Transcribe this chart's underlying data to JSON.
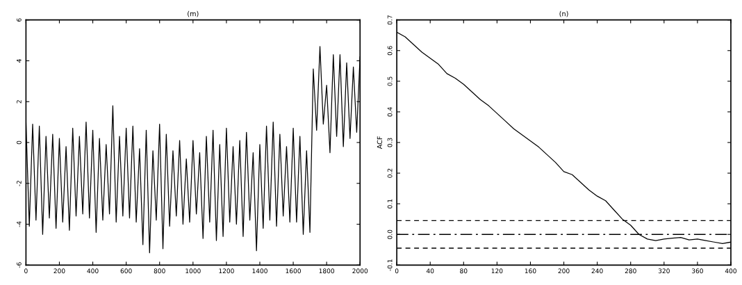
{
  "chart_data": [
    {
      "type": "line",
      "title": "(m)",
      "xlim": [
        0,
        2000
      ],
      "ylim": [
        -6,
        6
      ],
      "xticks": [
        0,
        200,
        400,
        600,
        800,
        1000,
        1200,
        1400,
        1600,
        1800,
        2000
      ],
      "yticks": [
        -6,
        -4,
        -2,
        0,
        2,
        4,
        6
      ],
      "x": [
        0,
        20,
        40,
        60,
        80,
        100,
        120,
        140,
        160,
        180,
        200,
        220,
        240,
        260,
        280,
        300,
        320,
        340,
        360,
        380,
        400,
        420,
        440,
        460,
        480,
        500,
        520,
        540,
        560,
        580,
        600,
        620,
        640,
        660,
        680,
        700,
        720,
        740,
        760,
        780,
        800,
        820,
        840,
        860,
        880,
        900,
        920,
        940,
        960,
        980,
        1000,
        1020,
        1040,
        1060,
        1080,
        1100,
        1120,
        1140,
        1160,
        1180,
        1200,
        1220,
        1240,
        1260,
        1280,
        1300,
        1320,
        1340,
        1360,
        1380,
        1400,
        1420,
        1440,
        1460,
        1480,
        1500,
        1520,
        1540,
        1560,
        1580,
        1600,
        1620,
        1640,
        1660,
        1680,
        1700,
        1720,
        1740,
        1760,
        1780,
        1800,
        1820,
        1840,
        1860,
        1880,
        1900,
        1920,
        1940,
        1960,
        1980,
        2000
      ],
      "series": [
        {
          "color": "#000000",
          "values": [
            1.0,
            -4.1,
            0.9,
            -3.8,
            0.8,
            -4.5,
            0.3,
            -3.7,
            0.4,
            -4.2,
            0.2,
            -3.9,
            -0.2,
            -4.3,
            0.7,
            -3.6,
            0.3,
            -3.5,
            1.0,
            -3.7,
            0.6,
            -4.4,
            0.2,
            -3.8,
            -0.1,
            -3.5,
            1.8,
            -3.9,
            0.3,
            -3.6,
            0.7,
            -3.7,
            0.8,
            -3.9,
            -0.3,
            -5.0,
            0.6,
            -5.4,
            -0.4,
            -3.8,
            0.9,
            -5.2,
            0.4,
            -4.1,
            -0.4,
            -3.6,
            0.1,
            -4.0,
            -0.8,
            -3.9,
            0.1,
            -3.5,
            -0.5,
            -4.7,
            0.3,
            -3.9,
            0.6,
            -4.8,
            -0.1,
            -4.6,
            0.7,
            -3.9,
            -0.2,
            -4.0,
            0.1,
            -4.6,
            0.5,
            -3.8,
            -0.5,
            -5.3,
            -0.1,
            -4.2,
            0.8,
            -3.8,
            1.0,
            -4.1,
            0.4,
            -3.6,
            -0.2,
            -3.9,
            0.7,
            -3.9,
            0.3,
            -4.5,
            -0.4,
            -4.4,
            3.6,
            0.6,
            4.7,
            0.9,
            2.8,
            -0.5,
            4.3,
            0.3,
            4.3,
            -0.2,
            3.9,
            0.2,
            3.7,
            0.5,
            4.2
          ]
        }
      ]
    },
    {
      "type": "line",
      "title": "(n)",
      "ylabel": "ACF",
      "xlim": [
        0,
        400
      ],
      "ylim": [
        -0.1,
        0.7
      ],
      "xticks": [
        0,
        40,
        80,
        120,
        160,
        200,
        240,
        280,
        320,
        360,
        400
      ],
      "yticks": [
        {
          "value": -0.1,
          "label": "-0.1"
        },
        {
          "value": 0.0,
          "label": "0.0"
        },
        {
          "value": 0.1,
          "label": "0.1"
        },
        {
          "value": 0.2,
          "label": "0.2"
        },
        {
          "value": 0.3,
          "label": "0.3"
        },
        {
          "value": 0.4,
          "label": "0.4"
        },
        {
          "value": 0.5,
          "label": "0.5"
        },
        {
          "value": 0.6,
          "label": "0.6"
        },
        {
          "value": 0.7,
          "label": "0.7"
        }
      ],
      "x": [
        0,
        10,
        20,
        30,
        40,
        50,
        60,
        70,
        80,
        90,
        100,
        110,
        120,
        130,
        140,
        150,
        160,
        170,
        180,
        190,
        200,
        210,
        220,
        230,
        240,
        250,
        260,
        270,
        280,
        290,
        300,
        310,
        320,
        330,
        340,
        350,
        360,
        370,
        380,
        390,
        400
      ],
      "series": [
        {
          "color": "#000000",
          "values": [
            0.66,
            0.645,
            0.62,
            0.595,
            0.575,
            0.555,
            0.525,
            0.51,
            0.49,
            0.465,
            0.44,
            0.42,
            0.395,
            0.37,
            0.345,
            0.325,
            0.305,
            0.285,
            0.26,
            0.235,
            0.205,
            0.195,
            0.17,
            0.145,
            0.125,
            0.11,
            0.08,
            0.05,
            0.03,
            0.0,
            -0.015,
            -0.02,
            -0.015,
            -0.012,
            -0.01,
            -0.018,
            -0.015,
            -0.02,
            -0.025,
            -0.03,
            -0.025
          ]
        }
      ],
      "ref_lines": [
        {
          "axis": "y",
          "value": 0.045,
          "line_style": "dashed",
          "color": "#000000"
        },
        {
          "axis": "y",
          "value": 0.0,
          "line_style": "dashdot",
          "color": "#000000"
        },
        {
          "axis": "y",
          "value": -0.045,
          "line_style": "dashed",
          "color": "#000000"
        }
      ]
    }
  ]
}
